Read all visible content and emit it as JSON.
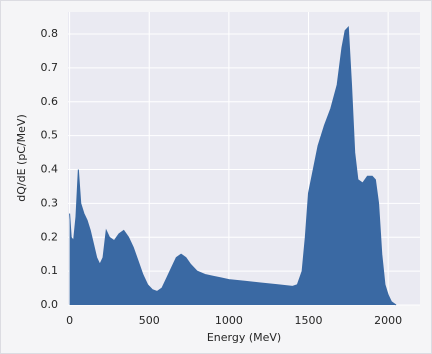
{
  "chart_data": {
    "type": "area",
    "color": "#3a69a3",
    "grid": true,
    "xlabel": "Energy (MeV)",
    "ylabel": "dQ/dE (pC/MeV)",
    "xlim": [
      -10,
      2200
    ],
    "ylim": [
      0,
      0.865
    ],
    "xticks": [
      0,
      500,
      1000,
      1500,
      2000
    ],
    "yticks": [
      {
        "value": 0,
        "label": "0.0"
      },
      0.1,
      0.2,
      0.3,
      0.4,
      0.5,
      0.6,
      0.7,
      0.8
    ],
    "x": [
      0,
      10,
      25,
      40,
      55,
      70,
      90,
      110,
      130,
      150,
      170,
      190,
      210,
      230,
      250,
      280,
      310,
      340,
      370,
      400,
      430,
      460,
      490,
      520,
      550,
      580,
      610,
      640,
      670,
      700,
      730,
      760,
      800,
      850,
      900,
      950,
      1000,
      1100,
      1200,
      1300,
      1400,
      1430,
      1460,
      1480,
      1500,
      1530,
      1560,
      1600,
      1640,
      1680,
      1710,
      1730,
      1750,
      1770,
      1790,
      1810,
      1840,
      1870,
      1900,
      1920,
      1940,
      1960,
      1980,
      2000,
      2020,
      2050
    ],
    "values": [
      0.27,
      0.2,
      0.19,
      0.26,
      0.4,
      0.3,
      0.27,
      0.25,
      0.22,
      0.18,
      0.14,
      0.12,
      0.14,
      0.22,
      0.2,
      0.19,
      0.21,
      0.22,
      0.2,
      0.17,
      0.13,
      0.09,
      0.06,
      0.045,
      0.04,
      0.05,
      0.08,
      0.11,
      0.14,
      0.15,
      0.14,
      0.12,
      0.1,
      0.09,
      0.085,
      0.08,
      0.075,
      0.07,
      0.065,
      0.06,
      0.055,
      0.06,
      0.1,
      0.2,
      0.33,
      0.4,
      0.47,
      0.53,
      0.58,
      0.65,
      0.76,
      0.81,
      0.82,
      0.65,
      0.45,
      0.37,
      0.36,
      0.38,
      0.38,
      0.37,
      0.3,
      0.15,
      0.06,
      0.03,
      0.01,
      0
    ]
  }
}
